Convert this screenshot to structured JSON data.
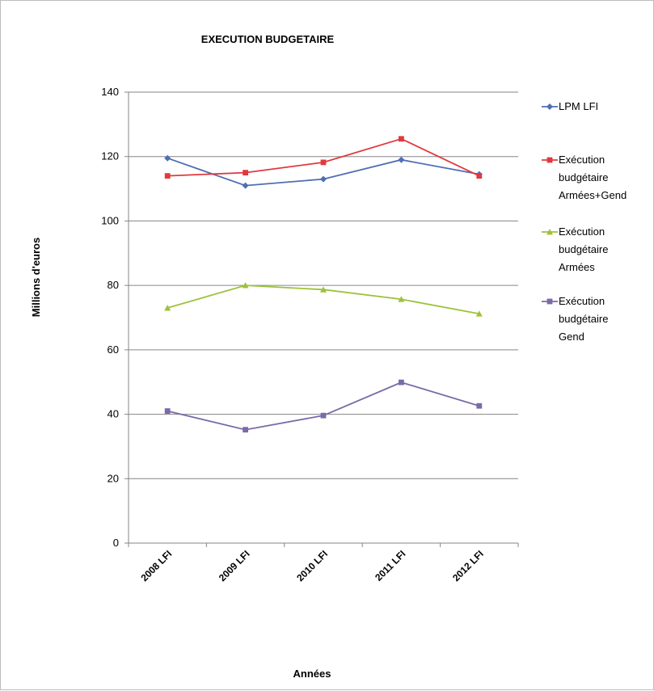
{
  "chart_data": {
    "type": "line",
    "title": "EXECUTION BUDGETAIRE",
    "xlabel": "Années",
    "ylabel": "Millions d'euros",
    "categories": [
      "2008 LFI",
      "2009 LFI",
      "2010 LFI",
      "2011 LFI",
      "2012 LFI"
    ],
    "ylim": [
      0,
      140
    ],
    "yticks": [
      0,
      20,
      40,
      60,
      80,
      100,
      120,
      140
    ],
    "grid": true,
    "legend_position": "right",
    "series": [
      {
        "name": "LPM LFI",
        "legend_lines": [
          "LPM LFI"
        ],
        "color": "#4F6EB4",
        "marker": "diamond",
        "values": [
          119.5,
          111,
          113,
          119,
          114.5
        ]
      },
      {
        "name": "Exécution budgétaire Armées+Gend",
        "legend_lines": [
          "Exécution",
          "budgétaire",
          "Armées+Gend"
        ],
        "color": "#E0393E",
        "marker": "square",
        "values": [
          114,
          115,
          118.2,
          125.5,
          114
        ]
      },
      {
        "name": "Exécution budgétaire Armées",
        "legend_lines": [
          "Exécution",
          "budgétaire",
          "Armées"
        ],
        "color": "#9CC33A",
        "marker": "triangle",
        "values": [
          73,
          80,
          78.7,
          75.7,
          71.2
        ]
      },
      {
        "name": "Exécution budgétaire Gend",
        "legend_lines": [
          "Exécution",
          "budgétaire",
          "Gend"
        ],
        "color": "#7B6AA8",
        "marker": "square",
        "values": [
          41,
          35.2,
          39.6,
          49.9,
          42.6
        ]
      }
    ]
  }
}
